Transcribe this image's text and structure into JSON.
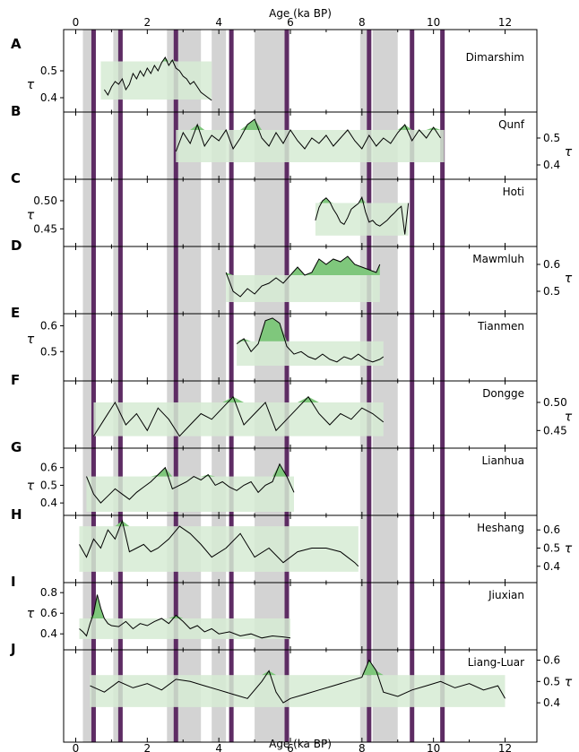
{
  "chart_data": {
    "type": "line",
    "title": "",
    "xlabel_top": "Age (ka BP)",
    "xlabel_bottom": "Age (ka BP)",
    "xlim": [
      -0.3,
      12.7
    ],
    "x_ticks": [
      "0",
      "2",
      "4",
      "6",
      "8",
      "10",
      "12"
    ],
    "x_tick_values": [
      0,
      2,
      4,
      6,
      8,
      10,
      12
    ],
    "ylabel": "τ",
    "gray_bands": [
      [
        0.2,
        0.45
      ],
      [
        1.05,
        1.25
      ],
      [
        2.55,
        2.75
      ],
      [
        2.85,
        3.5
      ],
      [
        3.8,
        4.2
      ],
      [
        5.0,
        5.85
      ],
      [
        7.95,
        8.15
      ],
      [
        8.3,
        9.0
      ]
    ],
    "purple_lines": [
      0.5,
      1.25,
      2.8,
      4.35,
      5.9,
      8.2,
      9.4,
      10.25
    ],
    "colors": {
      "gray_band": "#d3d3d3",
      "purple": "#5e2c64",
      "green_box": "#d6ebd4",
      "green_fill": "#7fc77c",
      "line": "#000000"
    },
    "panels": [
      {
        "label": "A",
        "name": "Dimarshim",
        "yaxis": "left",
        "ylim": [
          0.36,
          0.59
        ],
        "yticks": [
          0.4,
          0.5
        ],
        "ytick_labels": [
          "0.4",
          "0.5"
        ],
        "box": [
          0.7,
          3.8,
          0.393,
          0.535
        ],
        "x": [
          0.8,
          0.9,
          1.0,
          1.1,
          1.2,
          1.3,
          1.4,
          1.5,
          1.6,
          1.7,
          1.8,
          1.9,
          2.0,
          2.1,
          2.2,
          2.3,
          2.4,
          2.5,
          2.6,
          2.7,
          2.8,
          2.9,
          3.0,
          3.1,
          3.2,
          3.3,
          3.4,
          3.5,
          3.6,
          3.7,
          3.8
        ],
        "values": [
          0.43,
          0.41,
          0.44,
          0.46,
          0.45,
          0.47,
          0.43,
          0.45,
          0.49,
          0.47,
          0.5,
          0.48,
          0.51,
          0.49,
          0.52,
          0.5,
          0.53,
          0.55,
          0.52,
          0.54,
          0.51,
          0.5,
          0.48,
          0.47,
          0.45,
          0.46,
          0.44,
          0.42,
          0.41,
          0.4,
          0.39
        ]
      },
      {
        "label": "B",
        "name": "Qunf",
        "yaxis": "right",
        "ylim": [
          0.36,
          0.59
        ],
        "yticks": [
          0.4,
          0.5
        ],
        "ytick_labels": [
          "0.4",
          "0.5"
        ],
        "box": [
          2.8,
          10.3,
          0.41,
          0.53
        ],
        "x": [
          2.8,
          3.0,
          3.2,
          3.4,
          3.6,
          3.8,
          4.0,
          4.2,
          4.4,
          4.6,
          4.8,
          5.0,
          5.2,
          5.4,
          5.6,
          5.8,
          6.0,
          6.2,
          6.4,
          6.6,
          6.8,
          7.0,
          7.2,
          7.4,
          7.6,
          7.8,
          8.0,
          8.2,
          8.4,
          8.6,
          8.8,
          9.0,
          9.2,
          9.4,
          9.6,
          9.8,
          10.0,
          10.2
        ],
        "values": [
          0.45,
          0.52,
          0.48,
          0.55,
          0.47,
          0.51,
          0.49,
          0.53,
          0.46,
          0.5,
          0.55,
          0.57,
          0.5,
          0.47,
          0.52,
          0.48,
          0.53,
          0.49,
          0.46,
          0.5,
          0.48,
          0.51,
          0.47,
          0.5,
          0.53,
          0.49,
          0.46,
          0.51,
          0.47,
          0.5,
          0.48,
          0.52,
          0.55,
          0.49,
          0.53,
          0.5,
          0.54,
          0.5
        ]
      },
      {
        "label": "C",
        "name": "Hoti",
        "yaxis": "left",
        "ylim": [
          0.425,
          0.535
        ],
        "yticks": [
          0.45,
          0.5
        ],
        "ytick_labels": [
          "0.45",
          "0.50"
        ],
        "box": [
          6.7,
          9.3,
          0.438,
          0.496
        ],
        "x": [
          6.7,
          6.8,
          6.9,
          7.0,
          7.1,
          7.2,
          7.3,
          7.4,
          7.5,
          7.6,
          7.7,
          7.8,
          7.9,
          8.0,
          8.1,
          8.2,
          8.3,
          8.4,
          8.5,
          8.6,
          8.7,
          8.8,
          8.9,
          9.0,
          9.1,
          9.2,
          9.3
        ],
        "values": [
          0.465,
          0.488,
          0.5,
          0.505,
          0.498,
          0.485,
          0.475,
          0.462,
          0.458,
          0.47,
          0.485,
          0.49,
          0.495,
          0.506,
          0.48,
          0.462,
          0.465,
          0.458,
          0.455,
          0.46,
          0.465,
          0.472,
          0.478,
          0.485,
          0.49,
          0.44,
          0.496
        ]
      },
      {
        "label": "D",
        "name": "Mawmluh",
        "yaxis": "right",
        "ylim": [
          0.43,
          0.66
        ],
        "yticks": [
          0.5,
          0.6
        ],
        "ytick_labels": [
          "0.5",
          "0.6"
        ],
        "box": [
          4.2,
          8.5,
          0.46,
          0.56
        ],
        "x": [
          4.2,
          4.4,
          4.6,
          4.8,
          5.0,
          5.2,
          5.4,
          5.6,
          5.8,
          6.0,
          6.2,
          6.4,
          6.6,
          6.8,
          7.0,
          7.2,
          7.4,
          7.6,
          7.8,
          8.0,
          8.2,
          8.4,
          8.5
        ],
        "values": [
          0.57,
          0.5,
          0.48,
          0.51,
          0.49,
          0.52,
          0.53,
          0.55,
          0.53,
          0.56,
          0.59,
          0.56,
          0.57,
          0.62,
          0.6,
          0.62,
          0.61,
          0.63,
          0.6,
          0.59,
          0.58,
          0.57,
          0.6
        ]
      },
      {
        "label": "E",
        "name": "Tianmen",
        "yaxis": "left",
        "ylim": [
          0.4,
          0.64
        ],
        "yticks": [
          0.5,
          0.6
        ],
        "ytick_labels": [
          "0.5",
          "0.6"
        ],
        "box": [
          4.5,
          8.6,
          0.445,
          0.54
        ],
        "x": [
          4.5,
          4.7,
          4.9,
          5.1,
          5.3,
          5.5,
          5.7,
          5.9,
          6.1,
          6.3,
          6.5,
          6.7,
          6.9,
          7.1,
          7.3,
          7.5,
          7.7,
          7.9,
          8.1,
          8.3,
          8.5,
          8.6
        ],
        "values": [
          0.53,
          0.55,
          0.5,
          0.53,
          0.62,
          0.63,
          0.61,
          0.52,
          0.49,
          0.5,
          0.48,
          0.47,
          0.49,
          0.47,
          0.46,
          0.48,
          0.47,
          0.49,
          0.47,
          0.46,
          0.47,
          0.48
        ]
      },
      {
        "label": "F",
        "name": "Dongge",
        "yaxis": "right",
        "ylim": [
          0.425,
          0.535
        ],
        "yticks": [
          0.45,
          0.5
        ],
        "ytick_labels": [
          "0.45",
          "0.50"
        ],
        "box": [
          0.5,
          8.6,
          0.44,
          0.5
        ],
        "x": [
          0.5,
          0.8,
          1.1,
          1.4,
          1.7,
          2.0,
          2.3,
          2.6,
          2.9,
          3.2,
          3.5,
          3.8,
          4.1,
          4.4,
          4.7,
          5.0,
          5.3,
          5.6,
          5.9,
          6.2,
          6.5,
          6.8,
          7.1,
          7.4,
          7.7,
          8.0,
          8.3,
          8.6
        ],
        "values": [
          0.44,
          0.47,
          0.5,
          0.46,
          0.48,
          0.45,
          0.49,
          0.47,
          0.44,
          0.46,
          0.48,
          0.47,
          0.49,
          0.51,
          0.46,
          0.48,
          0.5,
          0.45,
          0.47,
          0.49,
          0.51,
          0.48,
          0.46,
          0.48,
          0.47,
          0.49,
          0.48,
          0.465
        ]
      },
      {
        "label": "G",
        "name": "Lianhua",
        "yaxis": "left",
        "ylim": [
          0.35,
          0.7
        ],
        "yticks": [
          0.4,
          0.5,
          0.6
        ],
        "ytick_labels": [
          "0.4",
          "0.5",
          "0.6"
        ],
        "box": [
          0.3,
          6.1,
          0.35,
          0.55
        ],
        "x": [
          0.3,
          0.5,
          0.7,
          0.9,
          1.1,
          1.3,
          1.5,
          1.7,
          1.9,
          2.1,
          2.3,
          2.5,
          2.7,
          2.9,
          3.1,
          3.3,
          3.5,
          3.7,
          3.9,
          4.1,
          4.3,
          4.5,
          4.7,
          4.9,
          5.1,
          5.3,
          5.5,
          5.7,
          5.9,
          6.1
        ],
        "values": [
          0.55,
          0.45,
          0.4,
          0.44,
          0.48,
          0.45,
          0.42,
          0.46,
          0.49,
          0.52,
          0.56,
          0.6,
          0.48,
          0.5,
          0.52,
          0.55,
          0.53,
          0.56,
          0.5,
          0.52,
          0.49,
          0.47,
          0.5,
          0.52,
          0.46,
          0.5,
          0.52,
          0.62,
          0.55,
          0.46
        ]
      },
      {
        "label": "H",
        "name": "Heshang",
        "yaxis": "right",
        "ylim": [
          0.33,
          0.67
        ],
        "yticks": [
          0.4,
          0.5,
          0.6
        ],
        "ytick_labels": [
          "0.4",
          "0.5",
          "0.6"
        ],
        "box": [
          0.1,
          7.9,
          0.37,
          0.62
        ],
        "x": [
          0.1,
          0.3,
          0.5,
          0.7,
          0.9,
          1.1,
          1.3,
          1.5,
          1.7,
          1.9,
          2.1,
          2.3,
          2.6,
          2.9,
          3.2,
          3.5,
          3.8,
          4.2,
          4.6,
          5.0,
          5.4,
          5.8,
          6.2,
          6.6,
          7.0,
          7.4,
          7.8,
          7.9
        ],
        "values": [
          0.52,
          0.45,
          0.55,
          0.5,
          0.6,
          0.55,
          0.65,
          0.48,
          0.5,
          0.52,
          0.48,
          0.5,
          0.55,
          0.62,
          0.58,
          0.52,
          0.45,
          0.5,
          0.58,
          0.45,
          0.5,
          0.42,
          0.48,
          0.5,
          0.5,
          0.48,
          0.42,
          0.4
        ]
      },
      {
        "label": "I",
        "name": "Jiuxian",
        "yaxis": "left",
        "ylim": [
          0.28,
          0.88
        ],
        "yticks": [
          0.4,
          0.6,
          0.8
        ],
        "ytick_labels": [
          "0.4",
          "0.6",
          "0.8"
        ],
        "box": [
          0.1,
          6.0,
          0.35,
          0.55
        ],
        "x": [
          0.1,
          0.2,
          0.3,
          0.4,
          0.5,
          0.6,
          0.7,
          0.8,
          0.9,
          1.0,
          1.2,
          1.4,
          1.6,
          1.8,
          2.0,
          2.2,
          2.4,
          2.6,
          2.8,
          3.0,
          3.2,
          3.4,
          3.6,
          3.8,
          4.0,
          4.3,
          4.6,
          4.9,
          5.2,
          5.5,
          5.8,
          6.0
        ],
        "values": [
          0.45,
          0.42,
          0.38,
          0.5,
          0.6,
          0.78,
          0.65,
          0.55,
          0.5,
          0.48,
          0.47,
          0.52,
          0.45,
          0.5,
          0.48,
          0.52,
          0.55,
          0.5,
          0.58,
          0.52,
          0.45,
          0.48,
          0.42,
          0.45,
          0.4,
          0.42,
          0.38,
          0.4,
          0.36,
          0.38,
          0.37,
          0.36
        ]
      },
      {
        "label": "J",
        "name": "Liang-Luar",
        "yaxis": "right",
        "ylim": [
          0.35,
          0.64
        ],
        "yticks": [
          0.4,
          0.5,
          0.6
        ],
        "ytick_labels": [
          "0.4",
          "0.5",
          "0.6"
        ],
        "box": [
          0.4,
          12.0,
          0.38,
          0.53
        ],
        "x": [
          0.4,
          0.8,
          1.2,
          1.6,
          2.0,
          2.4,
          2.8,
          3.2,
          3.6,
          4.0,
          4.4,
          4.8,
          5.2,
          5.4,
          5.6,
          5.8,
          6.0,
          6.4,
          6.8,
          7.2,
          7.6,
          8.0,
          8.2,
          8.4,
          8.6,
          9.0,
          9.4,
          9.8,
          10.2,
          10.6,
          11.0,
          11.4,
          11.8,
          12.0
        ],
        "values": [
          0.48,
          0.45,
          0.5,
          0.47,
          0.49,
          0.46,
          0.51,
          0.5,
          0.48,
          0.46,
          0.44,
          0.42,
          0.5,
          0.55,
          0.45,
          0.4,
          0.42,
          0.44,
          0.46,
          0.48,
          0.5,
          0.52,
          0.6,
          0.55,
          0.45,
          0.43,
          0.46,
          0.48,
          0.5,
          0.47,
          0.49,
          0.46,
          0.48,
          0.42
        ]
      }
    ]
  }
}
